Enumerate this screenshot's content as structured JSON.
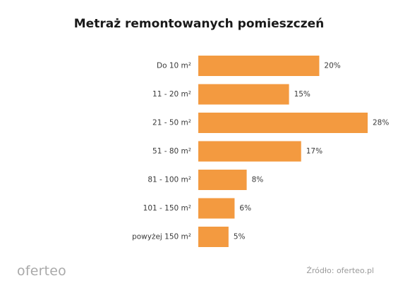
{
  "chart_data": {
    "type": "bar",
    "orientation": "horizontal",
    "title": "Metraż remontowanych pomieszczeń",
    "xlabel": "",
    "ylabel": "",
    "categories": [
      "Do 10 m²",
      "11 - 20 m²",
      "21 - 50 m²",
      "51 - 80 m²",
      "81 - 100 m²",
      "101 - 150 m²",
      "powyżej 150 m²"
    ],
    "values": [
      20,
      15,
      28,
      17,
      8,
      6,
      5
    ],
    "value_labels": [
      "20%",
      "15%",
      "28%",
      "17%",
      "8%",
      "6%",
      "5%"
    ],
    "unit": "%",
    "xlim": [
      0,
      28
    ],
    "grid": false,
    "legend": "none",
    "bar_color": "#f39a40"
  },
  "footer": {
    "logo": "oferteo",
    "source": "Źródło: oferteo.pl"
  }
}
